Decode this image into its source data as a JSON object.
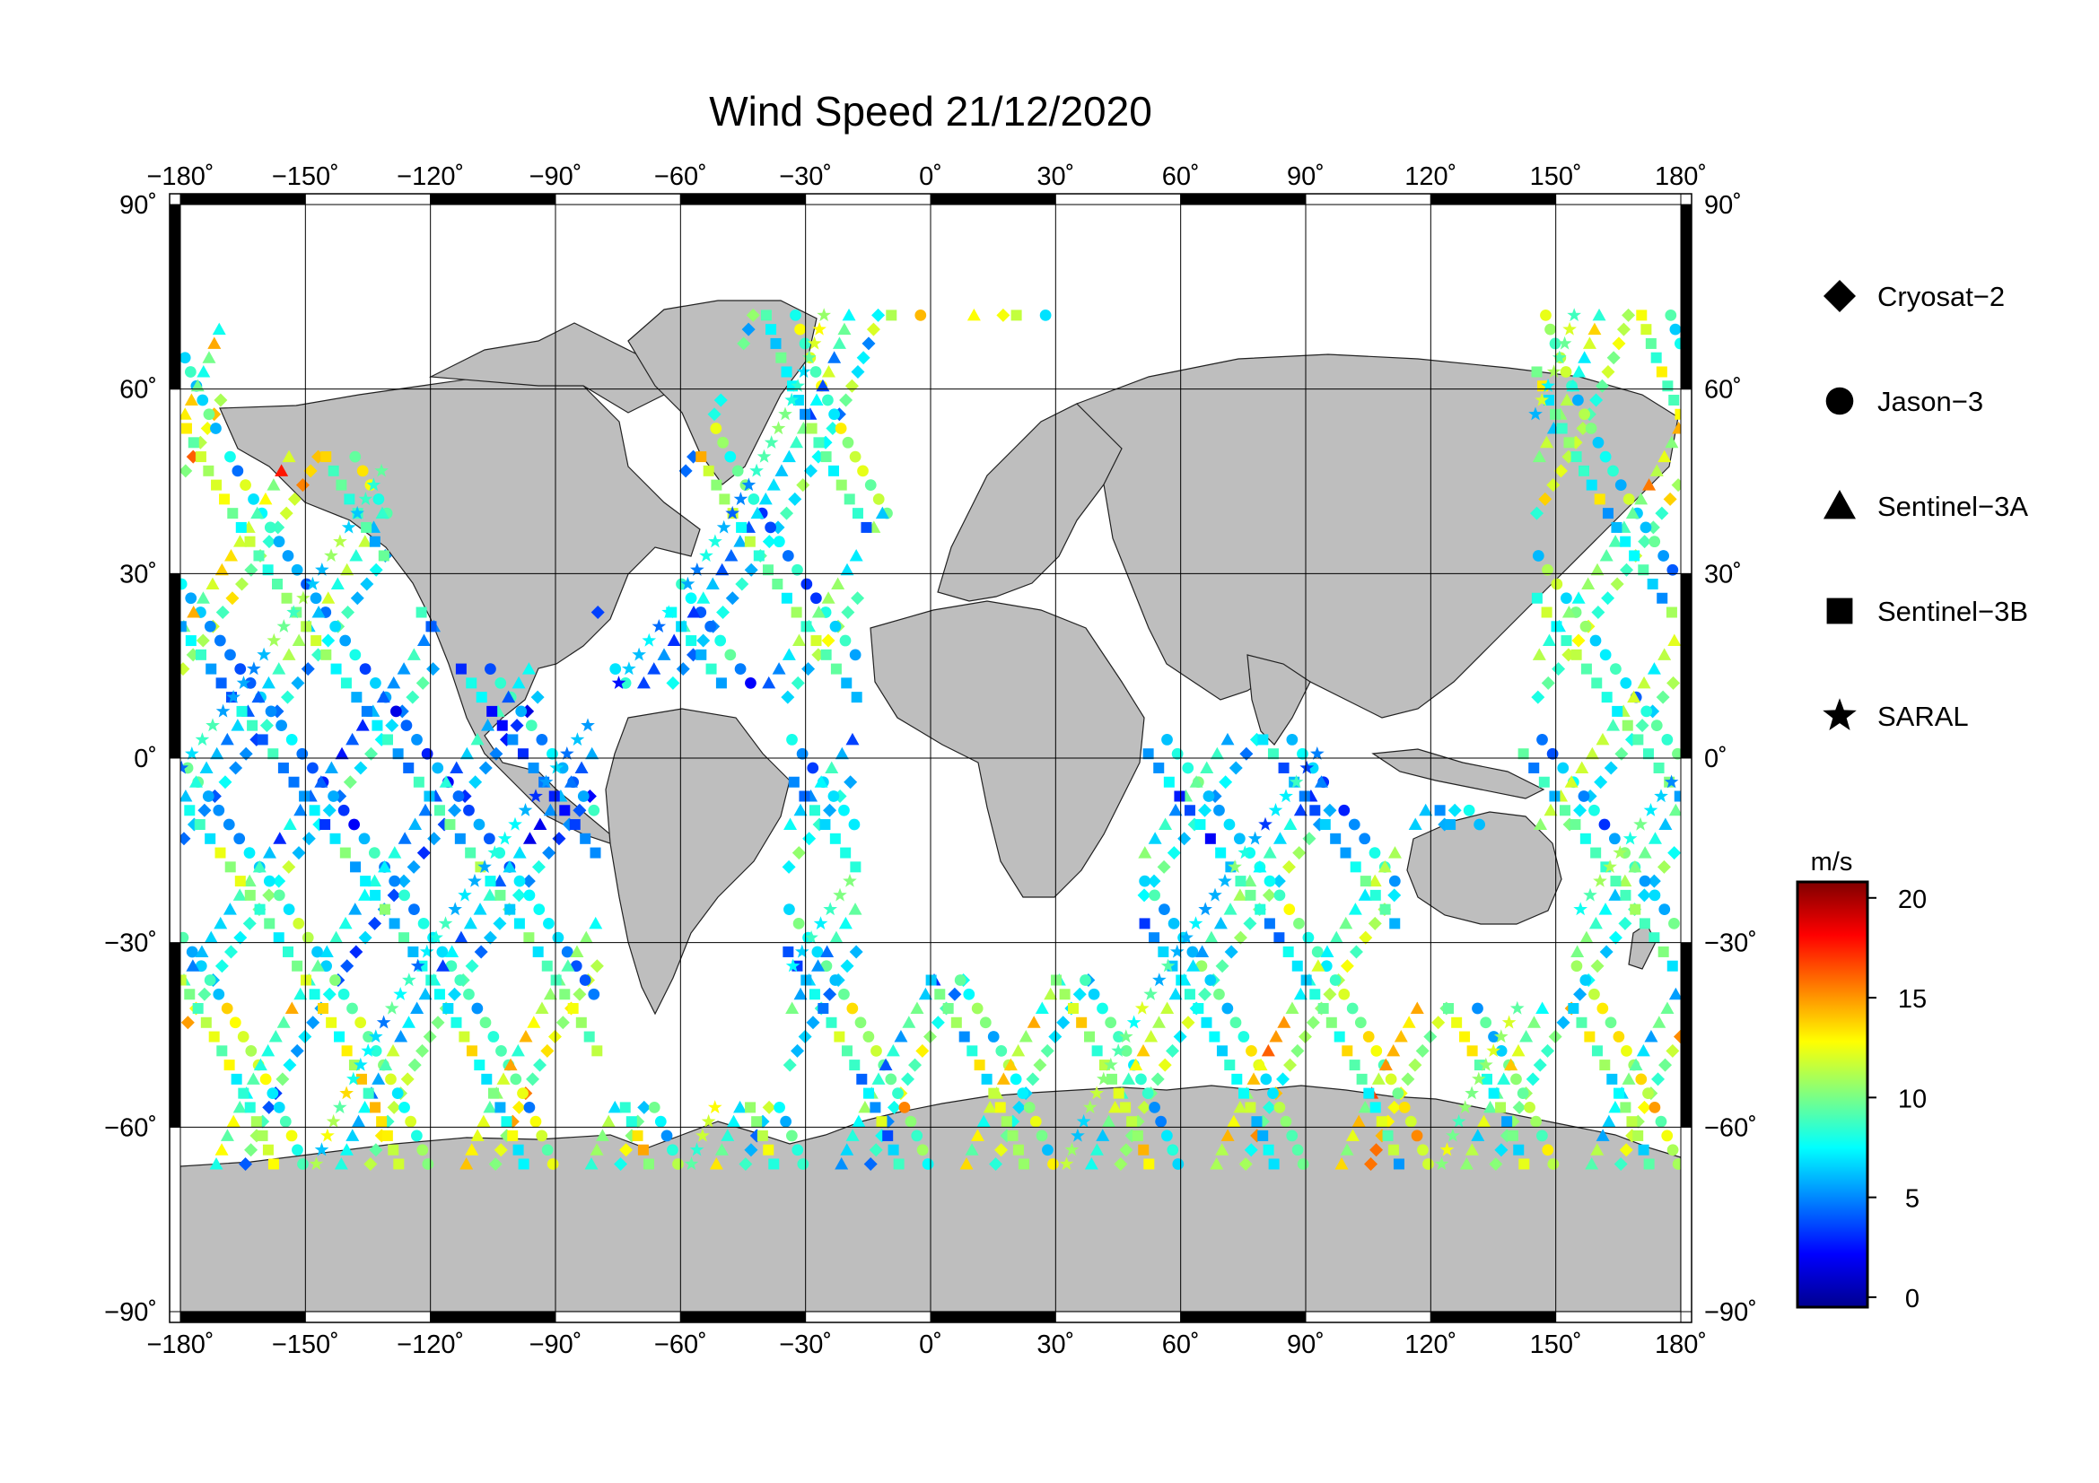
{
  "title": "Wind Speed 21/12/2020",
  "map": {
    "lon_range": [
      -180,
      180
    ],
    "lat_range": [
      -90,
      90
    ],
    "lon_ticks": [
      -180,
      -150,
      -120,
      -90,
      -60,
      -30,
      0,
      30,
      60,
      90,
      120,
      150,
      180
    ],
    "lat_ticks": [
      -90,
      -60,
      -30,
      0,
      30,
      60,
      90
    ],
    "lon_tick_labels": [
      "−180˚",
      "−150˚",
      "−120˚",
      "−90˚",
      "−60˚",
      "−30˚",
      "0˚",
      "30˚",
      "60˚",
      "90˚",
      "120˚",
      "150˚",
      "180˚"
    ],
    "lat_tick_labels_left": [
      "−90˚",
      "−60˚",
      "−30˚",
      "0˚",
      "30˚",
      "60˚",
      "90˚"
    ],
    "lat_tick_labels_right": [
      "−90˚",
      "−60˚",
      "−30˚",
      "0˚",
      "30˚",
      "60˚",
      "90˚"
    ],
    "grid": true,
    "land_color": "#bebebe",
    "ocean_color": "#ffffff"
  },
  "legend": {
    "items": [
      {
        "label": "Cryosat−2",
        "marker": "diamond"
      },
      {
        "label": "Jason−3",
        "marker": "circle"
      },
      {
        "label": "Sentinel−3A",
        "marker": "triangle"
      },
      {
        "label": "Sentinel−3B",
        "marker": "square"
      },
      {
        "label": "SARAL",
        "marker": "star"
      }
    ]
  },
  "colorbar": {
    "unit": "m/s",
    "range": [
      -0.5,
      20.8
    ],
    "ticks": [
      0,
      5,
      10,
      15,
      20
    ],
    "tick_labels": [
      "0",
      "5",
      "10",
      "15",
      "20"
    ],
    "colormap": "jet",
    "colors": [
      "#00008f",
      "#0000ff",
      "#0080ff",
      "#00ffff",
      "#80ff80",
      "#ffff00",
      "#ff8000",
      "#ff0000",
      "#800000"
    ]
  },
  "chart_data": {
    "type": "scatter",
    "title": "Wind Speed 21/12/2020",
    "xlabel": "",
    "ylabel": "",
    "xlim": [
      -180,
      180
    ],
    "ylim": [
      -90,
      90
    ],
    "value_unit": "m/s",
    "series": [
      {
        "name": "Cryosat−2",
        "marker": "diamond",
        "ascending": true,
        "equator_longitudes": [
          -165,
          -135,
          -105,
          -75,
          -45,
          -15,
          15,
          45,
          75,
          105,
          135,
          165
        ],
        "mean_speeds": [
          8,
          9,
          6,
          7,
          10,
          8,
          6,
          7,
          8,
          9,
          10,
          11
        ]
      },
      {
        "name": "Jason−3",
        "marker": "circle",
        "ascending": false,
        "equator_longitudes": [
          -150,
          -120,
          -90,
          -60,
          -30,
          0,
          30,
          60,
          90,
          120,
          150,
          180
        ],
        "mean_speeds": [
          7,
          6,
          8,
          9,
          7,
          6,
          8,
          10,
          7,
          9,
          8,
          9
        ]
      },
      {
        "name": "Sentinel−3A",
        "marker": "triangle",
        "ascending": true,
        "equator_longitudes": [
          -172,
          -142,
          -112,
          -82,
          -52,
          -22,
          8,
          38,
          68,
          98,
          128,
          158
        ],
        "mean_speeds": [
          9,
          7,
          8,
          6,
          9,
          8,
          7,
          6,
          9,
          8,
          10,
          12
        ]
      },
      {
        "name": "Sentinel−3B",
        "marker": "square",
        "ascending": false,
        "equator_longitudes": [
          -157,
          -127,
          -97,
          -67,
          -37,
          -7,
          23,
          53,
          83,
          113,
          143,
          173
        ],
        "mean_speeds": [
          8,
          9,
          7,
          6,
          8,
          9,
          6,
          7,
          8,
          7,
          9,
          10
        ]
      },
      {
        "name": "SARAL",
        "marker": "star",
        "ascending": true,
        "equator_longitudes": [
          -178,
          -88,
          2,
          92
        ],
        "mean_speeds": [
          9,
          7,
          8,
          8
        ]
      }
    ]
  }
}
